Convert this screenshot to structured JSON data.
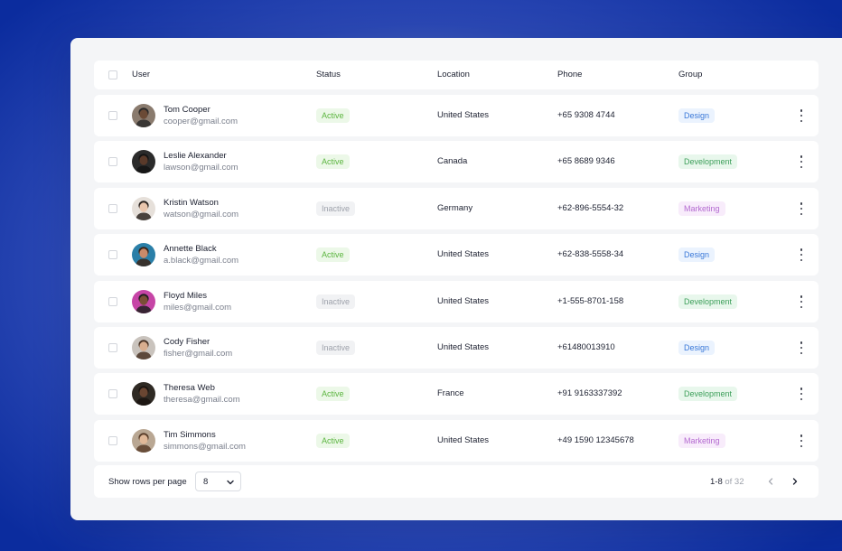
{
  "columns": {
    "user": "User",
    "status": "Status",
    "location": "Location",
    "phone": "Phone",
    "group": "Group"
  },
  "rows": [
    {
      "name": "Tom Cooper",
      "email": "cooper@gmail.com",
      "status": "Active",
      "location": "United States",
      "phone": "+65 9308 4744",
      "group": "Design"
    },
    {
      "name": "Leslie Alexander",
      "email": "lawson@gmail.com",
      "status": "Active",
      "location": "Canada",
      "phone": "+65 8689 9346",
      "group": "Development"
    },
    {
      "name": "Kristin Watson",
      "email": "watson@gmail.com",
      "status": "Inactive",
      "location": "Germany",
      "phone": "+62-896-5554-32",
      "group": "Marketing"
    },
    {
      "name": "Annette Black",
      "email": "a.black@gmail.com",
      "status": "Active",
      "location": "United States",
      "phone": "+62-838-5558-34",
      "group": "Design"
    },
    {
      "name": "Floyd Miles",
      "email": "miles@gmail.com",
      "status": "Inactive",
      "location": "United States",
      "phone": "+1-555-8701-158",
      "group": "Development"
    },
    {
      "name": "Cody Fisher",
      "email": "fisher@gmail.com",
      "status": "Inactive",
      "location": "United States",
      "phone": "+61480013910",
      "group": "Design"
    },
    {
      "name": "Theresa Web",
      "email": "theresa@gmail.com",
      "status": "Active",
      "location": "France",
      "phone": "+91 9163337392",
      "group": "Development"
    },
    {
      "name": "Tim Simmons",
      "email": "simmons@gmail.com",
      "status": "Active",
      "location": "United States",
      "phone": "+49 1590 12345678",
      "group": "Marketing"
    }
  ],
  "avatars": [
    {
      "bg": "#8a7b6e",
      "skin": "#6b4a35",
      "hair": "#2a2a2a"
    },
    {
      "bg": "#2b2b2b",
      "skin": "#5a3a2a",
      "hair": "#141414"
    },
    {
      "bg": "#e6e0da",
      "skin": "#e9c6ad",
      "hair": "#2b2420"
    },
    {
      "bg": "#2a7fa8",
      "skin": "#c98a6a",
      "hair": "#3a2418"
    },
    {
      "bg": "#c645a6",
      "skin": "#7a4e36",
      "hair": "#1f1f1f"
    },
    {
      "bg": "#c9c3bd",
      "skin": "#d9ae8f",
      "hair": "#4a3426"
    },
    {
      "bg": "#2f2a24",
      "skin": "#6a4632",
      "hair": "#1a1410"
    },
    {
      "bg": "#b9a793",
      "skin": "#e0b898",
      "hair": "#5a3e2a"
    }
  ],
  "icons": {
    "row_menu": "more-vertical-icon",
    "select_chevron": "chevron-down-icon",
    "prev": "chevron-left-icon",
    "next": "chevron-right-icon"
  },
  "footer": {
    "rows_per_page_label": "Show rows per page",
    "rows_per_page_value": "8",
    "range": "1-8",
    "of_total": " of 32"
  }
}
